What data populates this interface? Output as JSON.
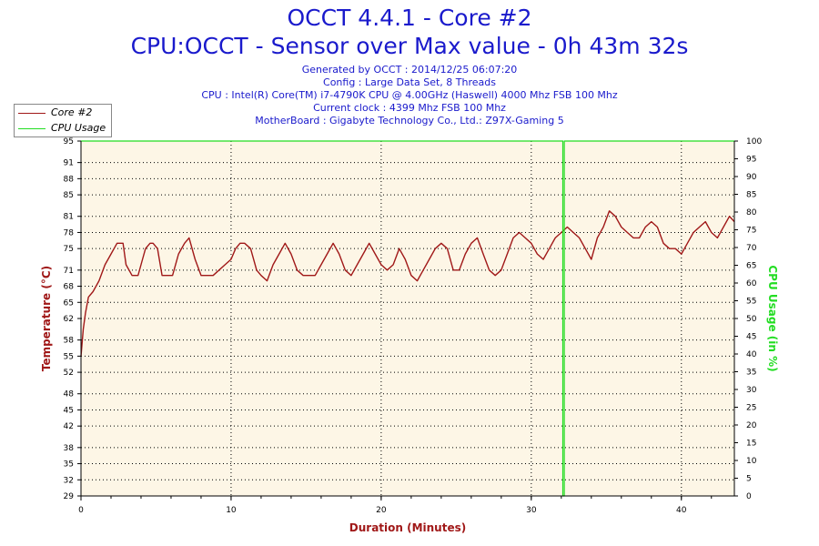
{
  "header": {
    "title": "OCCT 4.4.1 - Core #2",
    "subtitle": "CPU:OCCT - Sensor over Max value - 0h 43m 32s",
    "info": [
      "Generated by OCCT : 2014/12/25 06:07:20",
      "Config : Large Data Set, 8 Threads",
      "CPU : Intel(R) Core(TM) i7-4790K CPU @ 4.00GHz (Haswell) 4000 Mhz FSB 100 Mhz",
      "Current clock : 4399 Mhz FSB 100 Mhz",
      "MotherBoard : Gigabyte Technology Co., Ltd.: Z97X-Gaming 5"
    ]
  },
  "colors": {
    "temperature": "#a01818",
    "cpu_usage": "#22dd22",
    "plot_bg": "#fdf6e6",
    "title": "#1a1acc",
    "axis_title_left": "#a01818",
    "axis_title_right": "#22dd22",
    "axis_title_bottom": "#a01818"
  },
  "chart_data": {
    "type": "line",
    "xlabel": "Duration (Minutes)",
    "ylabel": "Temperature (°C)",
    "y2label": "CPU Usage (in %)",
    "xlim": [
      0,
      43.53
    ],
    "xticks": [
      0,
      10,
      20,
      30,
      40
    ],
    "ylim": [
      29,
      95
    ],
    "yticks": [
      29,
      32,
      35,
      38,
      42,
      45,
      48,
      52,
      55,
      58,
      62,
      65,
      68,
      71,
      75,
      78,
      81,
      85,
      88,
      91,
      95
    ],
    "y2lim": [
      0,
      100
    ],
    "y2ticks": [
      0,
      5,
      10,
      15,
      20,
      25,
      30,
      35,
      40,
      45,
      50,
      55,
      60,
      65,
      70,
      75,
      80,
      85,
      90,
      95,
      100
    ],
    "legend": {
      "position": "top-left",
      "entries": [
        "Core #2",
        "CPU Usage"
      ]
    },
    "grid": true,
    "series": [
      {
        "name": "Core #2",
        "axis": "left",
        "x": [
          0,
          0.15,
          0.3,
          0.5,
          0.8,
          1.2,
          1.6,
          2.0,
          2.4,
          2.8,
          3.0,
          3.4,
          3.8,
          4.1,
          4.3,
          4.6,
          4.8,
          5.1,
          5.4,
          5.8,
          6.1,
          6.5,
          6.9,
          7.2,
          7.6,
          8.0,
          8.4,
          8.8,
          9.2,
          9.6,
          10.0,
          10.3,
          10.6,
          10.9,
          11.3,
          11.7,
          12.0,
          12.4,
          12.8,
          13.2,
          13.6,
          14.0,
          14.4,
          14.8,
          15.2,
          15.6,
          16.0,
          16.4,
          16.8,
          17.2,
          17.6,
          18.0,
          18.4,
          18.8,
          19.2,
          19.6,
          20.0,
          20.4,
          20.8,
          21.2,
          21.6,
          22.0,
          22.4,
          22.8,
          23.2,
          23.6,
          24.0,
          24.4,
          24.8,
          25.2,
          25.6,
          26.0,
          26.4,
          26.8,
          27.2,
          27.6,
          28.0,
          28.4,
          28.8,
          29.2,
          29.6,
          30.0,
          30.4,
          30.8,
          31.2,
          31.6,
          32.0,
          32.4,
          32.8,
          33.2,
          33.6,
          34.0,
          34.4,
          34.8,
          35.2,
          35.6,
          36.0,
          36.4,
          36.8,
          37.2,
          37.6,
          38.0,
          38.4,
          38.8,
          39.2,
          39.6,
          40.0,
          40.4,
          40.8,
          41.2,
          41.6,
          42.0,
          42.4,
          42.8,
          43.2,
          43.53
        ],
        "y": [
          55,
          60,
          63,
          66,
          67,
          69,
          72,
          74,
          76,
          76,
          72,
          70,
          70,
          73,
          75,
          76,
          76,
          75,
          70,
          70,
          70,
          74,
          76,
          77,
          73,
          70,
          70,
          70,
          71,
          72,
          73,
          75,
          76,
          76,
          75,
          71,
          70,
          69,
          72,
          74,
          76,
          74,
          71,
          70,
          70,
          70,
          72,
          74,
          76,
          74,
          71,
          70,
          72,
          74,
          76,
          74,
          72,
          71,
          72,
          75,
          73,
          70,
          69,
          71,
          73,
          75,
          76,
          75,
          71,
          71,
          74,
          76,
          77,
          74,
          71,
          70,
          71,
          74,
          77,
          78,
          77,
          76,
          74,
          73,
          75,
          77,
          78,
          79,
          78,
          77,
          75,
          73,
          77,
          79,
          82,
          81,
          79,
          78,
          77,
          77,
          79,
          80,
          79,
          76,
          75,
          75,
          74,
          76,
          78,
          79,
          80,
          78,
          77,
          79,
          81,
          80
        ]
      },
      {
        "name": "CPU Usage",
        "axis": "right",
        "x": [
          0,
          32.1,
          32.1,
          32.2,
          32.2,
          43.53
        ],
        "y": [
          100,
          100,
          0,
          0,
          100,
          100
        ]
      }
    ]
  }
}
